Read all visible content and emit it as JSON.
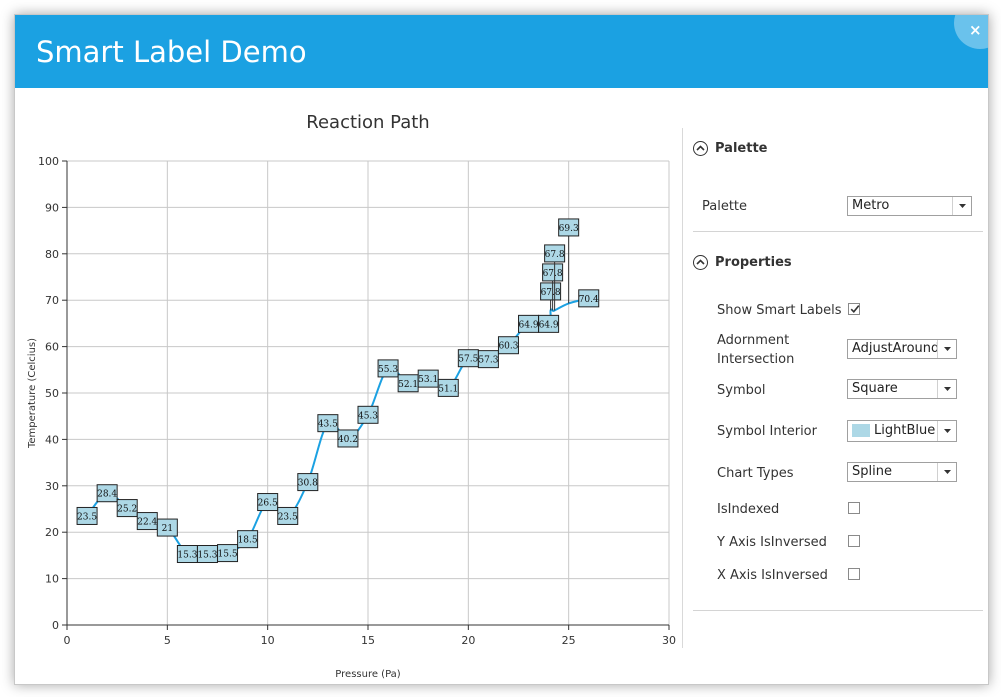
{
  "window": {
    "title": "Smart Label Demo",
    "close_glyph": "×"
  },
  "chart_data": {
    "type": "line",
    "subtype": "spline",
    "title": "Reaction Path",
    "xlabel": "Pressure (Pa)",
    "ylabel": "Temperature (Celcius)",
    "xlim": [
      0,
      30
    ],
    "ylim": [
      0,
      100
    ],
    "xticks": [
      0,
      5,
      10,
      15,
      20,
      25,
      30
    ],
    "yticks": [
      0,
      10,
      20,
      30,
      40,
      50,
      60,
      70,
      80,
      90,
      100
    ],
    "grid": true,
    "line_color": "#1ba1e2",
    "label_fill": "#add8e6",
    "x": [
      1,
      2,
      3,
      4,
      5,
      6,
      7,
      8,
      9,
      10,
      11,
      12,
      13,
      14,
      15,
      16,
      17,
      18,
      19,
      20,
      21,
      22,
      23,
      24,
      24.1,
      24.2,
      24.3,
      25,
      26
    ],
    "y": [
      23.5,
      28.4,
      25.2,
      22.4,
      21,
      15.3,
      15.3,
      15.5,
      18.5,
      26.5,
      23.5,
      30.8,
      43.5,
      40.2,
      45.3,
      55.3,
      52.1,
      53.1,
      51.1,
      57.5,
      57.3,
      60.3,
      64.9,
      64.9,
      67.8,
      67.8,
      67.8,
      69.3,
      70.4
    ]
  },
  "panel": {
    "palette_section": "Palette",
    "palette_label": "Palette",
    "palette_value": "Metro",
    "properties_section": "Properties",
    "show_smart_labels_label": "Show Smart Labels",
    "show_smart_labels_checked": true,
    "adornment_label_line1": "Adornment",
    "adornment_label_line2": "Intersection",
    "adornment_value": "AdjustAround",
    "symbol_label": "Symbol",
    "symbol_value": "Square",
    "symbol_interior_label": "Symbol Interior",
    "symbol_interior_value": "LightBlue",
    "symbol_interior_color": "#add8e6",
    "chart_types_label": "Chart Types",
    "chart_types_value": "Spline",
    "isindexed_label": "IsIndexed",
    "isindexed_checked": false,
    "y_inversed_label": "Y Axis IsInversed",
    "y_inversed_checked": false,
    "x_inversed_label": "X Axis IsInversed",
    "x_inversed_checked": false
  }
}
